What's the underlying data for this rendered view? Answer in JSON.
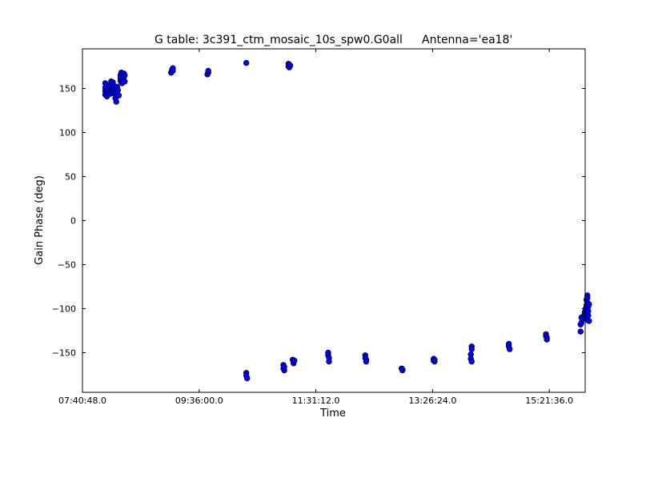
{
  "chart_data": {
    "type": "scatter",
    "title": "G table: 3c391_ctm_mosaic_10s_spw0.G0all",
    "subtitle": "Antenna='ea18'",
    "xlabel": "Time",
    "ylabel": "Gain Phase (deg)",
    "x_unit": "seconds since 00:00",
    "xlim": [
      27648,
      57420
    ],
    "ylim": [
      -195,
      195
    ],
    "x_ticks": [
      {
        "value": 27648,
        "label": "07:40:48.0"
      },
      {
        "value": 34560,
        "label": "09:36:00.0"
      },
      {
        "value": 41472,
        "label": "11:31:12.0"
      },
      {
        "value": 48384,
        "label": "13:26:24.0"
      },
      {
        "value": 55296,
        "label": "15:21:36.0"
      }
    ],
    "y_ticks": [
      {
        "value": 150,
        "label": "150"
      },
      {
        "value": 100,
        "label": "100"
      },
      {
        "value": 50,
        "label": "50"
      },
      {
        "value": 0,
        "label": "0"
      },
      {
        "value": -50,
        "label": "−50"
      },
      {
        "value": -100,
        "label": "−100"
      },
      {
        "value": -150,
        "label": "−150"
      }
    ],
    "grid": false,
    "marker_color": "#0000ff",
    "points": [
      [
        29000,
        143
      ],
      [
        29000,
        147
      ],
      [
        29000,
        151
      ],
      [
        29000,
        156
      ],
      [
        29100,
        141
      ],
      [
        29100,
        145
      ],
      [
        29100,
        153
      ],
      [
        29150,
        149
      ],
      [
        29250,
        146
      ],
      [
        29300,
        144
      ],
      [
        29300,
        152
      ],
      [
        29350,
        158
      ],
      [
        29350,
        155
      ],
      [
        29400,
        150
      ],
      [
        29400,
        147
      ],
      [
        29450,
        157
      ],
      [
        29500,
        153
      ],
      [
        29500,
        148
      ],
      [
        29550,
        144
      ],
      [
        29600,
        150
      ],
      [
        29600,
        139
      ],
      [
        29650,
        135
      ],
      [
        29650,
        146
      ],
      [
        29700,
        152
      ],
      [
        29750,
        148
      ],
      [
        29800,
        142
      ],
      [
        29900,
        159
      ],
      [
        29900,
        162
      ],
      [
        29900,
        165
      ],
      [
        29950,
        168
      ],
      [
        29950,
        157
      ],
      [
        30000,
        156
      ],
      [
        30050,
        160
      ],
      [
        30100,
        163
      ],
      [
        30100,
        167
      ],
      [
        30150,
        158
      ],
      [
        30150,
        165
      ],
      [
        32900,
        168
      ],
      [
        32950,
        171
      ],
      [
        33000,
        173
      ],
      [
        33000,
        170
      ],
      [
        35050,
        166
      ],
      [
        35100,
        168
      ],
      [
        35100,
        170
      ],
      [
        37350,
        179
      ],
      [
        39850,
        175
      ],
      [
        39850,
        178
      ],
      [
        39900,
        174
      ],
      [
        39900,
        177
      ],
      [
        39950,
        176
      ],
      [
        37350,
        -173
      ],
      [
        37350,
        -176
      ],
      [
        37400,
        -179
      ],
      [
        39550,
        -164
      ],
      [
        39550,
        -168
      ],
      [
        39600,
        -170
      ],
      [
        39600,
        -166
      ],
      [
        40100,
        -158
      ],
      [
        40150,
        -162
      ],
      [
        40150,
        -160
      ],
      [
        40200,
        -159
      ],
      [
        42200,
        -150
      ],
      [
        42200,
        -153
      ],
      [
        42250,
        -156
      ],
      [
        42250,
        -160
      ],
      [
        44400,
        -153
      ],
      [
        44400,
        -156
      ],
      [
        44450,
        -158
      ],
      [
        44450,
        -160
      ],
      [
        46550,
        -168
      ],
      [
        46600,
        -170
      ],
      [
        46600,
        -169
      ],
      [
        48450,
        -157
      ],
      [
        48450,
        -159
      ],
      [
        48500,
        -160
      ],
      [
        48500,
        -158
      ],
      [
        50700,
        -143
      ],
      [
        50700,
        -146
      ],
      [
        50650,
        -152
      ],
      [
        50650,
        -157
      ],
      [
        50700,
        -160
      ],
      [
        52900,
        -140
      ],
      [
        52900,
        -143
      ],
      [
        52950,
        -146
      ],
      [
        55100,
        -129
      ],
      [
        55100,
        -131
      ],
      [
        55150,
        -133
      ],
      [
        55150,
        -135
      ],
      [
        57150,
        -126
      ],
      [
        57150,
        -118
      ],
      [
        57200,
        -116
      ],
      [
        57200,
        -110
      ],
      [
        57250,
        -112
      ],
      [
        57350,
        -108
      ],
      [
        57400,
        -104
      ],
      [
        57400,
        -111
      ],
      [
        57450,
        -100
      ],
      [
        57450,
        -106
      ],
      [
        57500,
        -96
      ],
      [
        57500,
        -110
      ],
      [
        57500,
        -90
      ],
      [
        57550,
        -85
      ],
      [
        57550,
        -88
      ],
      [
        57550,
        -93
      ],
      [
        57550,
        -113
      ],
      [
        57600,
        -98
      ],
      [
        57600,
        -103
      ],
      [
        57600,
        -108
      ],
      [
        57650,
        -95
      ],
      [
        57650,
        -114
      ]
    ]
  }
}
